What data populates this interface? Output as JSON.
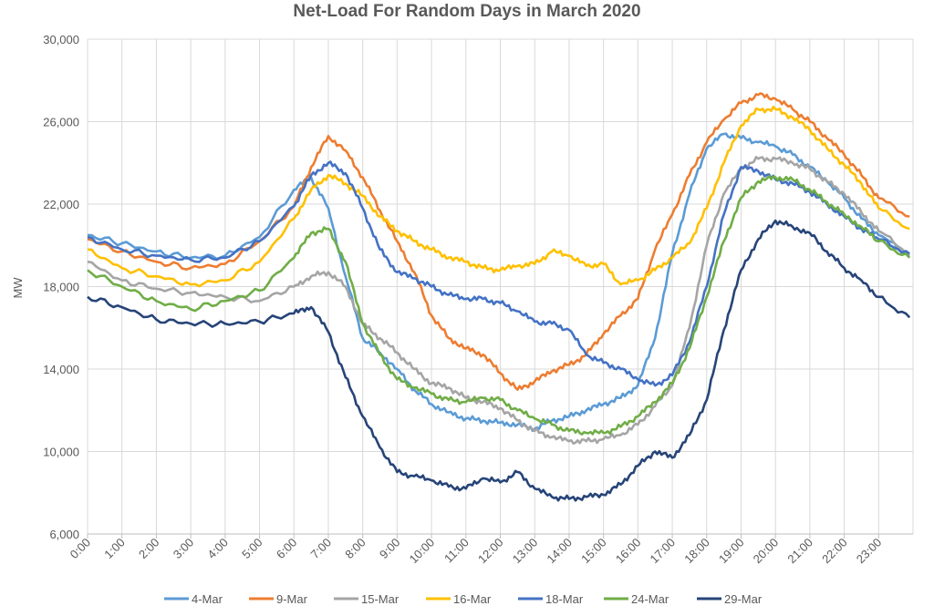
{
  "chart_data": {
    "type": "line",
    "title": "Net-Load For Random Days in March 2020",
    "xlabel": "",
    "ylabel": "MW",
    "ylim": [
      6000,
      30000
    ],
    "yticks": [
      "6,000",
      "10,000",
      "14,000",
      "18,000",
      "22,000",
      "26,000",
      "30,000"
    ],
    "categories": [
      "0:00",
      "1:00",
      "2:00",
      "3:00",
      "4:00",
      "5:00",
      "6:00",
      "7:00",
      "8:00",
      "9:00",
      "10:00",
      "11:00",
      "12:00",
      "13:00",
      "14:00",
      "15:00",
      "16:00",
      "17:00",
      "18:00",
      "19:00",
      "20:00",
      "21:00",
      "22:00",
      "23:00"
    ],
    "grid": "vertical and horizontal",
    "legend_position": "bottom",
    "series": [
      {
        "name": "4-Mar",
        "color": "#5B9BD5",
        "x": [
          0,
          1,
          2,
          3,
          4,
          5,
          6,
          6.5,
          7,
          7.5,
          8,
          8.5,
          9,
          9.5,
          10,
          10.5,
          11,
          11.5,
          12,
          12.5,
          13,
          13.5,
          14,
          14.5,
          15,
          15.5,
          16,
          16.5,
          17,
          17.5,
          18,
          18.5,
          19,
          19.5,
          20,
          20.5,
          21,
          21.5,
          22,
          22.5,
          23,
          23.9
        ],
        "values": [
          20500,
          20100,
          19700,
          19400,
          19500,
          20400,
          22700,
          23300,
          21800,
          18500,
          15500,
          14800,
          14000,
          13000,
          12300,
          11900,
          11600,
          11500,
          11400,
          11300,
          11100,
          11500,
          11700,
          12000,
          12300,
          12600,
          13200,
          15500,
          19600,
          22500,
          24700,
          25400,
          25200,
          25000,
          24800,
          24400,
          23800,
          23100,
          22300,
          21300,
          20500,
          19500
        ]
      },
      {
        "name": "9-Mar",
        "color": "#ED7D31",
        "x": [
          0,
          1,
          2,
          3,
          4,
          5,
          6,
          6.5,
          7,
          7.5,
          8,
          8.5,
          9,
          9.5,
          10,
          10.5,
          11,
          11.5,
          12,
          12.5,
          13,
          13.5,
          14,
          14.5,
          15,
          15.5,
          16,
          16.5,
          17,
          17.5,
          18,
          18.5,
          19,
          19.5,
          20,
          20.5,
          21,
          21.5,
          22,
          22.5,
          23,
          23.9
        ],
        "values": [
          20300,
          19700,
          19200,
          18900,
          19100,
          20200,
          21900,
          23800,
          25300,
          24600,
          23300,
          21700,
          20200,
          18700,
          16600,
          15500,
          15000,
          14700,
          13800,
          13000,
          13400,
          13900,
          14200,
          14700,
          15700,
          16600,
          17400,
          19800,
          21500,
          23400,
          25000,
          26100,
          26900,
          27300,
          27100,
          26600,
          26000,
          25200,
          24400,
          23400,
          22300,
          21400
        ]
      },
      {
        "name": "15-Mar",
        "color": "#A5A5A5",
        "x": [
          0,
          1,
          2,
          3,
          4,
          5,
          6,
          6.5,
          7,
          7.5,
          8,
          8.5,
          9,
          9.5,
          10,
          10.5,
          11,
          11.5,
          12,
          12.5,
          13,
          13.5,
          14,
          14.5,
          15,
          15.5,
          16,
          16.5,
          17,
          17.5,
          18,
          18.5,
          19,
          19.5,
          20,
          20.5,
          21,
          21.5,
          22,
          22.5,
          23,
          23.9
        ],
        "values": [
          19200,
          18300,
          17900,
          17700,
          17500,
          17300,
          18000,
          18500,
          18700,
          18000,
          16200,
          15500,
          14800,
          14000,
          13300,
          13100,
          12600,
          12400,
          12100,
          11500,
          11000,
          10700,
          10500,
          10500,
          10600,
          10800,
          11300,
          12200,
          13200,
          16000,
          20000,
          22500,
          23700,
          24200,
          24200,
          24000,
          23700,
          23100,
          22500,
          21600,
          20700,
          19600
        ]
      },
      {
        "name": "16-Mar",
        "color": "#FFC000",
        "x": [
          0,
          1,
          2,
          3,
          4,
          5,
          6,
          6.5,
          7,
          7.5,
          8,
          8.5,
          9,
          9.5,
          10,
          10.5,
          11,
          11.5,
          12,
          12.5,
          13,
          13.5,
          14,
          14.5,
          15,
          15.5,
          16,
          16.5,
          17,
          17.5,
          18,
          18.5,
          19,
          19.5,
          20,
          20.5,
          21,
          21.5,
          22,
          22.5,
          23,
          23.9
        ],
        "values": [
          19800,
          18900,
          18500,
          18100,
          18300,
          19200,
          21300,
          22700,
          23400,
          23000,
          22400,
          21400,
          20700,
          20200,
          19800,
          19400,
          19200,
          18900,
          18800,
          19000,
          19100,
          19700,
          19500,
          19000,
          19100,
          18100,
          18300,
          18800,
          19400,
          20100,
          21800,
          24000,
          25800,
          26600,
          26600,
          26200,
          25600,
          24700,
          23900,
          23000,
          21800,
          20800
        ]
      },
      {
        "name": "18-Mar",
        "color": "#4472C4",
        "x": [
          0,
          1,
          2,
          3,
          4,
          5,
          6,
          6.5,
          7,
          7.5,
          8,
          8.5,
          9,
          9.5,
          10,
          10.5,
          11,
          11.5,
          12,
          12.5,
          13,
          13.5,
          14,
          14.5,
          15,
          15.5,
          16,
          16.5,
          17,
          17.5,
          18,
          18.5,
          19,
          19.5,
          20,
          20.5,
          21,
          21.5,
          22,
          22.5,
          23,
          23.9
        ],
        "values": [
          20400,
          19800,
          19500,
          19300,
          19400,
          20200,
          21900,
          23400,
          24000,
          23500,
          21800,
          19800,
          18700,
          18400,
          18000,
          17600,
          17400,
          17400,
          17200,
          16800,
          16300,
          16200,
          15900,
          14700,
          14300,
          14000,
          13500,
          13200,
          13700,
          15300,
          18000,
          21500,
          23800,
          23600,
          23200,
          23000,
          22600,
          22000,
          21400,
          20800,
          20300,
          19600
        ]
      },
      {
        "name": "24-Mar",
        "color": "#70AD47",
        "x": [
          0,
          1,
          2,
          3,
          4,
          5,
          6,
          6.5,
          7,
          7.5,
          8,
          8.5,
          9,
          9.5,
          10,
          10.5,
          11,
          11.5,
          12,
          12.5,
          13,
          13.5,
          14,
          14.5,
          15,
          15.5,
          16,
          16.5,
          17,
          17.5,
          18,
          18.5,
          19,
          19.5,
          20,
          20.5,
          21,
          21.5,
          22,
          22.5,
          23,
          23.9
        ],
        "values": [
          18800,
          18000,
          17300,
          16900,
          17300,
          17800,
          19400,
          20600,
          20800,
          19200,
          16200,
          14700,
          13500,
          13100,
          12800,
          12500,
          12400,
          12600,
          12500,
          12000,
          11600,
          11300,
          11000,
          10900,
          10900,
          11200,
          11700,
          12400,
          13300,
          15000,
          17500,
          20200,
          22300,
          23100,
          23300,
          23200,
          22700,
          22100,
          21500,
          20900,
          20200,
          19400
        ]
      },
      {
        "name": "29-Mar",
        "color": "#264478",
        "x": [
          0,
          1,
          2,
          3,
          4,
          5,
          6,
          6.5,
          7,
          7.5,
          8,
          8.5,
          9,
          9.5,
          10,
          10.5,
          11,
          11.5,
          12,
          12.5,
          13,
          13.5,
          14,
          14.5,
          15,
          15.5,
          16,
          16.5,
          17,
          17.5,
          18,
          18.5,
          19,
          19.5,
          20,
          20.5,
          21,
          21.5,
          22,
          22.5,
          23,
          23.9
        ],
        "values": [
          17500,
          17000,
          16400,
          16200,
          16200,
          16300,
          16700,
          17000,
          15800,
          13600,
          11700,
          10200,
          9000,
          8800,
          8600,
          8300,
          8200,
          8700,
          8500,
          9000,
          8200,
          7800,
          7700,
          7800,
          7900,
          8400,
          9300,
          10000,
          9700,
          10800,
          12500,
          15900,
          18800,
          20300,
          21200,
          20900,
          20600,
          19700,
          18900,
          18300,
          17500,
          16500
        ]
      }
    ]
  }
}
